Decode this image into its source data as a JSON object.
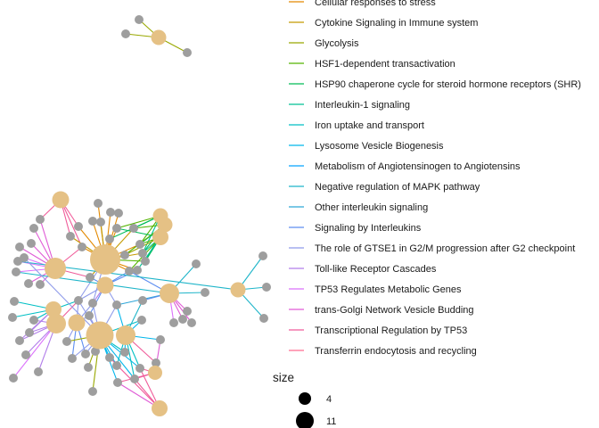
{
  "chart_data": {
    "type": "network",
    "category_legend": [
      {
        "label": "Cellular responses to stress",
        "color": "#E38900"
      },
      {
        "label": "Cytokine Signaling in Immune system",
        "color": "#C49A00"
      },
      {
        "label": "Glycolysis",
        "color": "#99A800"
      },
      {
        "label": "HSF1-dependent transactivation",
        "color": "#53B400"
      },
      {
        "label": "HSP90 chaperone cycle for steroid hormone receptors (SHR)",
        "color": "#00BC56"
      },
      {
        "label": "Interleukin-1 signaling",
        "color": "#00C094"
      },
      {
        "label": "Iron uptake and transport",
        "color": "#00BFC4"
      },
      {
        "label": "Lysosome Vesicle Biogenesis",
        "color": "#00B6EB"
      },
      {
        "label": "Metabolism of Angiotensinogen to Angiotensins",
        "color": "#06A4FF"
      },
      {
        "label": "Negative regulation of MAPK pathway",
        "color": "#1FB5C9"
      },
      {
        "label": "Other interleukin signaling",
        "color": "#2FA6D8"
      },
      {
        "label": "Signaling by Interleukins",
        "color": "#5E8EF0"
      },
      {
        "label": "The role of GTSE1 in G2/M progression after G2 checkpoint",
        "color": "#8F9BEA"
      },
      {
        "label": "Toll-like Receptor Cascades",
        "color": "#B27EEA"
      },
      {
        "label": "TP53 Regulates Metabolic Genes",
        "color": "#DB72FB"
      },
      {
        "label": "trans-Golgi Network Vesicle Budding",
        "color": "#E05BD6"
      },
      {
        "label": "Transcriptional Regulation by TP53",
        "color": "#F05C9A"
      },
      {
        "label": "Transferrin endocytosis and recycling",
        "color": "#FF6C91"
      }
    ],
    "size_legend": {
      "title": "size",
      "entries": [
        {
          "label": "4",
          "value": 4
        },
        {
          "label": "11",
          "value": 11
        }
      ]
    },
    "colors": {
      "category_node": "#E5C185",
      "gene_node": "#9E9E9E",
      "background": "#FFFFFF"
    }
  }
}
